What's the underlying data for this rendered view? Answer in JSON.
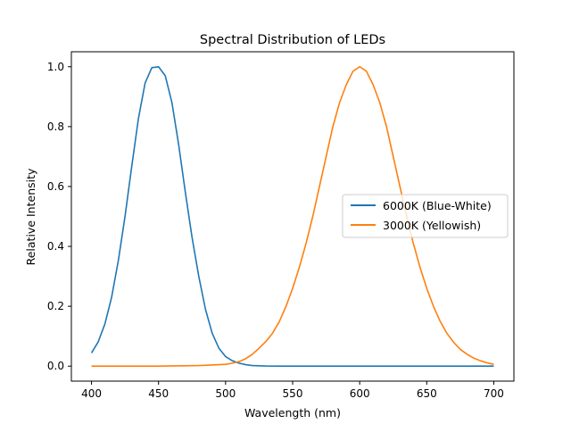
{
  "chart_data": {
    "type": "line",
    "title": "Spectral Distribution of LEDs",
    "xlabel": "Wavelength (nm)",
    "ylabel": "Relative Intensity",
    "xlim": [
      385,
      715
    ],
    "ylim": [
      -0.05,
      1.05
    ],
    "xticks": [
      400,
      450,
      500,
      550,
      600,
      650,
      700
    ],
    "yticks": [
      0.0,
      0.2,
      0.4,
      0.6,
      0.8,
      1.0
    ],
    "xtick_labels": [
      "400",
      "450",
      "500",
      "550",
      "600",
      "650",
      "700"
    ],
    "ytick_labels": [
      "0.0",
      "0.2",
      "0.4",
      "0.6",
      "0.8",
      "1.0"
    ],
    "grid": false,
    "legend_position": "center-right",
    "series": [
      {
        "name": "6000K (Blue-White)",
        "color": "#1f77b4",
        "x": [
          400,
          405,
          410,
          415,
          420,
          425,
          430,
          435,
          440,
          445,
          450,
          455,
          460,
          465,
          470,
          475,
          480,
          485,
          490,
          495,
          500,
          505,
          510,
          515,
          520,
          530,
          540,
          550,
          575,
          600,
          625,
          650,
          675,
          700
        ],
        "y": [
          0.044,
          0.081,
          0.141,
          0.23,
          0.352,
          0.5,
          0.667,
          0.827,
          0.946,
          0.997,
          1.0,
          0.97,
          0.88,
          0.74,
          0.58,
          0.43,
          0.3,
          0.19,
          0.11,
          0.06,
          0.032,
          0.018,
          0.01,
          0.005,
          0.002,
          0.0004,
          0.0,
          0.0,
          0.0,
          0.0,
          0.0,
          0.0,
          0.0,
          0.0
        ]
      },
      {
        "name": "3000K (Yellowish)",
        "color": "#ff7f0e",
        "x": [
          400,
          450,
          480,
          495,
          500,
          505,
          510,
          515,
          520,
          525,
          530,
          535,
          540,
          545,
          550,
          555,
          560,
          565,
          570,
          575,
          580,
          585,
          590,
          595,
          600,
          605,
          610,
          615,
          620,
          625,
          630,
          635,
          640,
          645,
          650,
          655,
          660,
          665,
          670,
          675,
          680,
          685,
          690,
          695,
          700
        ],
        "y": [
          0.0,
          0.0,
          0.002,
          0.005,
          0.006,
          0.01,
          0.015,
          0.025,
          0.04,
          0.06,
          0.082,
          0.11,
          0.148,
          0.199,
          0.26,
          0.33,
          0.41,
          0.5,
          0.6,
          0.7,
          0.8,
          0.88,
          0.94,
          0.985,
          1.0,
          0.985,
          0.94,
          0.88,
          0.8,
          0.7,
          0.6,
          0.5,
          0.41,
          0.33,
          0.26,
          0.2,
          0.15,
          0.11,
          0.08,
          0.056,
          0.04,
          0.027,
          0.018,
          0.011,
          0.006
        ]
      }
    ]
  }
}
